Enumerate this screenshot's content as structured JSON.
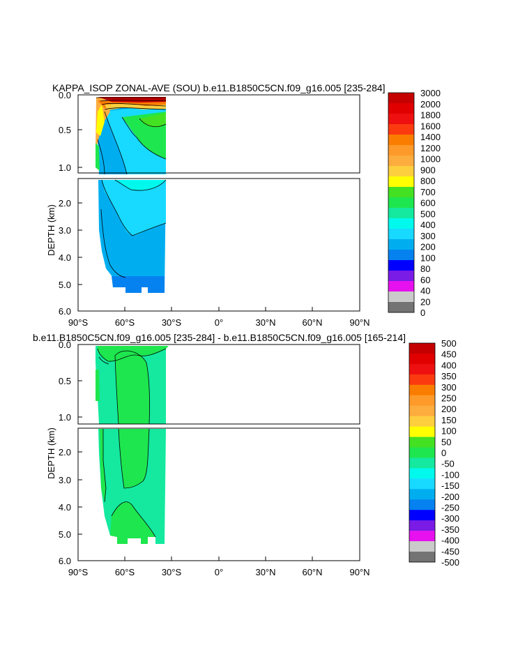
{
  "chart_data": [
    {
      "type": "contour",
      "title": "KAPPA_ISOP ZONAL-AVE (SOU) b.e11.B1850C5CN.f09_g16.005 [235-284]",
      "ylabel": "DEPTH (km)",
      "xlabel": "",
      "x_ticks": [
        "90°S",
        "60°S",
        "30°S",
        "0°",
        "30°N",
        "60°N",
        "90°N"
      ],
      "xlim": [
        -90,
        90
      ],
      "y_ticks_upper": [
        "0.0",
        "0.5",
        "1.0"
      ],
      "y_ticks_lower": [
        "2.0",
        "3.0",
        "4.0",
        "5.0",
        "6.0"
      ],
      "ylim_upper_km": [
        0,
        1.15
      ],
      "ylim_lower_km": [
        1.15,
        6.0
      ],
      "data_extent_lat": [
        -79,
        -34
      ],
      "colorbar": {
        "labels": [
          "3000",
          "2000",
          "1800",
          "1600",
          "1400",
          "1200",
          "1000",
          "900",
          "800",
          "700",
          "600",
          "500",
          "400",
          "300",
          "200",
          "100",
          "80",
          "60",
          "40",
          "20",
          "0"
        ],
        "colors": [
          "#c40000",
          "#e00000",
          "#ee1010",
          "#fb3a10",
          "#fb7d00",
          "#fd9a2a",
          "#fdac3e",
          "#fdce3e",
          "#ffff00",
          "#43e121",
          "#1ee64e",
          "#14e99f",
          "#00f9ec",
          "#18d9ff",
          "#00aef0",
          "#0582f0",
          "#0000ff",
          "#7a1be6",
          "#e611ee",
          "#cacaca",
          "#737373"
        ]
      }
    },
    {
      "type": "contour",
      "title": "b.e11.B1850C5CN.f09_g16.005 [235-284] - b.e11.B1850C5CN.f09_g16.005 [165-214]",
      "ylabel": "DEPTH (km)",
      "xlabel": "",
      "x_ticks": [
        "90°S",
        "60°S",
        "30°S",
        "0°",
        "30°N",
        "60°N",
        "90°N"
      ],
      "xlim": [
        -90,
        90
      ],
      "y_ticks_upper": [
        "0.0",
        "0.5",
        "1.0"
      ],
      "y_ticks_lower": [
        "2.0",
        "3.0",
        "4.0",
        "5.0",
        "6.0"
      ],
      "ylim_upper_km": [
        0,
        1.15
      ],
      "ylim_lower_km": [
        1.15,
        6.0
      ],
      "data_extent_lat": [
        -79,
        -34
      ],
      "colorbar": {
        "labels": [
          "500",
          "450",
          "400",
          "350",
          "300",
          "250",
          "200",
          "150",
          "100",
          "50",
          "0",
          "-50",
          "-100",
          "-150",
          "-200",
          "-250",
          "-300",
          "-350",
          "-400",
          "-450",
          "-500"
        ],
        "colors": [
          "#c40000",
          "#e00000",
          "#ee1010",
          "#fb3a10",
          "#fb7d00",
          "#fd9a2a",
          "#fdac3e",
          "#fdce3e",
          "#ffff00",
          "#43e121",
          "#1ee64e",
          "#14e99f",
          "#00f9ec",
          "#18d9ff",
          "#00aef0",
          "#0582f0",
          "#0000ff",
          "#7a1be6",
          "#e611ee",
          "#cacaca",
          "#737373"
        ]
      }
    }
  ]
}
